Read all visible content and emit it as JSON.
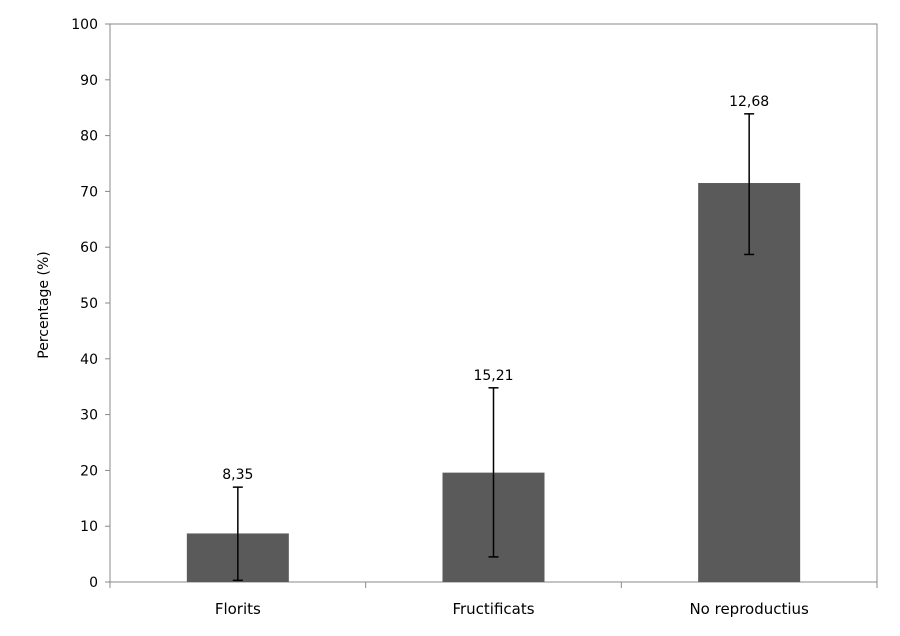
{
  "chart_data": {
    "type": "bar",
    "categories": [
      "Florits",
      "Fructificats",
      "No reproductius"
    ],
    "values": [
      8.7,
      19.6,
      71.5
    ],
    "error": [
      {
        "low": 0.3,
        "high": 17.0
      },
      {
        "low": 4.5,
        "high": 34.8
      },
      {
        "low": 58.7,
        "high": 83.9
      }
    ],
    "data_labels": [
      "8,35",
      "15,21",
      "12,68"
    ],
    "ylabel": "Percentage (%)",
    "xlabel": "",
    "ylim": [
      0,
      100
    ],
    "yticks": [
      "0",
      "10",
      "20",
      "30",
      "40",
      "50",
      "60",
      "70",
      "80",
      "90",
      "100"
    ],
    "bar_color": "#5a5a5a",
    "axis_color": "#888888",
    "grid": false,
    "legend": "none"
  }
}
